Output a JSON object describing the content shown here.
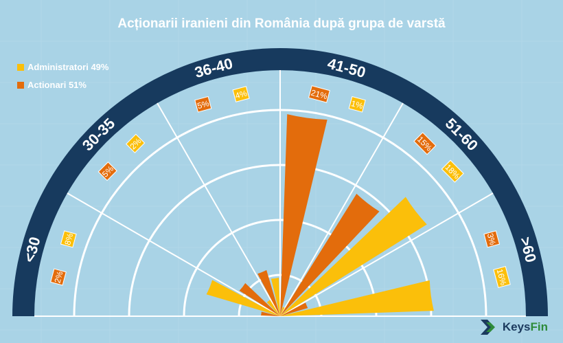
{
  "title": "Acționarii iranieni din România după grupa de varstă",
  "legend": [
    {
      "label": "Administratori 49%",
      "color": "#fbbf0a"
    },
    {
      "label": "Actionari 51%",
      "color": "#e36c0c"
    }
  ],
  "brand": {
    "keys": "Keys",
    "fin": "Fin"
  },
  "colors": {
    "navy": "#173a5e",
    "background": "#a9d3e6",
    "grid": "#ffffff"
  },
  "chart_data": {
    "type": "polar-bar",
    "title": "Acționarii iranieni din România după grupa de varstă",
    "categories": [
      "<30",
      "30-35",
      "36-40",
      "41-50",
      "51-60",
      ">60"
    ],
    "series": [
      {
        "name": "Administratori",
        "color": "#fbbf0a",
        "values": [
          8,
          2,
          4,
          1,
          18,
          16
        ]
      },
      {
        "name": "Actionari",
        "color": "#e36c0c",
        "values": [
          2,
          5,
          5,
          21,
          15,
          3
        ]
      }
    ],
    "value_labels": {
      "Administratori": [
        "8%",
        "2%",
        "4%",
        "1%",
        "18%",
        "16%"
      ],
      "Actionari": [
        "2%",
        "5%",
        "5%",
        "21%",
        "15%",
        "3%"
      ]
    }
  }
}
